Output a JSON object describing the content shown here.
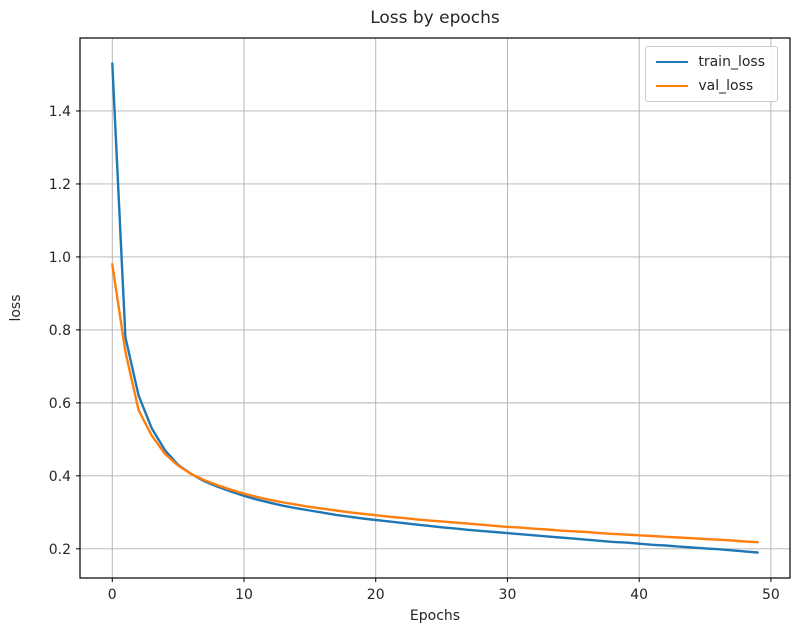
{
  "figure": {
    "background": "#ffffff",
    "text_color": "#262626",
    "grid_color": "#b0b0b0",
    "axes_edge_color": "#000000"
  },
  "chart_data": {
    "type": "line",
    "title": "Loss by epochs",
    "xlabel": "Epochs",
    "ylabel": "loss",
    "grid": true,
    "legend_position": "upper right",
    "xlim": [
      -2.45,
      51.45
    ],
    "ylim": [
      0.12,
      1.6
    ],
    "x_ticks": [
      0,
      10,
      20,
      30,
      40,
      50
    ],
    "y_ticks": [
      0.2,
      0.4,
      0.6,
      0.8,
      1.0,
      1.2,
      1.4
    ],
    "x": [
      0,
      1,
      2,
      3,
      4,
      5,
      6,
      7,
      8,
      9,
      10,
      11,
      12,
      13,
      14,
      15,
      16,
      17,
      18,
      19,
      20,
      21,
      22,
      23,
      24,
      25,
      26,
      27,
      28,
      29,
      30,
      31,
      32,
      33,
      34,
      35,
      36,
      37,
      38,
      39,
      40,
      41,
      42,
      43,
      44,
      45,
      46,
      47,
      48,
      49
    ],
    "series": [
      {
        "name": "train_loss",
        "color": "#1f77b4",
        "values": [
          1.53,
          0.78,
          0.62,
          0.53,
          0.47,
          0.43,
          0.405,
          0.385,
          0.37,
          0.357,
          0.345,
          0.335,
          0.326,
          0.318,
          0.311,
          0.305,
          0.299,
          0.293,
          0.288,
          0.283,
          0.279,
          0.275,
          0.271,
          0.267,
          0.263,
          0.259,
          0.256,
          0.252,
          0.249,
          0.246,
          0.243,
          0.24,
          0.237,
          0.234,
          0.231,
          0.228,
          0.225,
          0.222,
          0.219,
          0.217,
          0.214,
          0.211,
          0.209,
          0.206,
          0.204,
          0.201,
          0.199,
          0.196,
          0.193,
          0.19
        ]
      },
      {
        "name": "val_loss",
        "color": "#ff7f0e",
        "values": [
          0.98,
          0.74,
          0.58,
          0.51,
          0.46,
          0.428,
          0.405,
          0.388,
          0.374,
          0.362,
          0.351,
          0.342,
          0.334,
          0.327,
          0.321,
          0.315,
          0.31,
          0.305,
          0.3,
          0.296,
          0.292,
          0.288,
          0.285,
          0.281,
          0.278,
          0.275,
          0.272,
          0.269,
          0.266,
          0.263,
          0.26,
          0.258,
          0.255,
          0.253,
          0.25,
          0.248,
          0.246,
          0.243,
          0.241,
          0.239,
          0.237,
          0.235,
          0.233,
          0.231,
          0.229,
          0.227,
          0.225,
          0.223,
          0.22,
          0.218
        ]
      }
    ]
  }
}
